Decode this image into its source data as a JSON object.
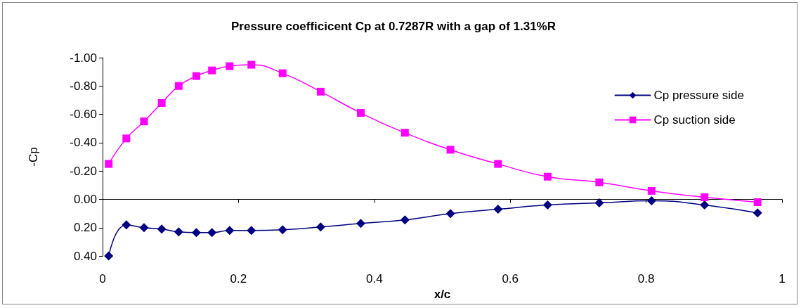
{
  "chart_data": {
    "type": "line",
    "title": "Pressure coefficicent Cp at 0.7287R with a gap of 1.31%R",
    "xlabel": "x/c",
    "ylabel": "-Cp",
    "x": [
      0.009,
      0.035,
      0.061,
      0.087,
      0.112,
      0.138,
      0.161,
      0.187,
      0.219,
      0.265,
      0.321,
      0.38,
      0.445,
      0.512,
      0.582,
      0.655,
      0.731,
      0.808,
      0.886,
      0.964
    ],
    "series": [
      {
        "name": "Cp pressure side",
        "color": "#000080",
        "marker": "diamond",
        "values": [
          0.4,
          0.18,
          0.2,
          0.21,
          0.23,
          0.235,
          0.235,
          0.22,
          0.22,
          0.215,
          0.195,
          0.17,
          0.145,
          0.1,
          0.07,
          0.04,
          0.025,
          0.01,
          0.04,
          0.095
        ]
      },
      {
        "name": "Cp suction side",
        "color": "#ff00ff",
        "marker": "square",
        "values": [
          -0.25,
          -0.43,
          -0.55,
          -0.68,
          -0.8,
          -0.87,
          -0.91,
          -0.94,
          -0.95,
          -0.89,
          -0.76,
          -0.61,
          -0.47,
          -0.35,
          -0.25,
          -0.16,
          -0.12,
          -0.06,
          -0.015,
          0.02
        ]
      }
    ],
    "xlim": [
      0,
      1
    ],
    "xticks": [
      0,
      0.2,
      0.4,
      0.6,
      0.8,
      1
    ],
    "ylim": [
      0.4,
      -1.0
    ],
    "yticks": [
      {
        "value": -1.0,
        "label": "-1.00"
      },
      {
        "value": -0.8,
        "label": "-0.80"
      },
      {
        "value": -0.6,
        "label": "-0.60"
      },
      {
        "value": -0.4,
        "label": "-0.40"
      },
      {
        "value": -0.2,
        "label": "-0.20"
      },
      {
        "value": 0,
        "label": "0.00"
      },
      {
        "value": 0.2,
        "label": "0.20"
      },
      {
        "value": 0.4,
        "label": "0.40"
      }
    ],
    "legend": "top right"
  }
}
